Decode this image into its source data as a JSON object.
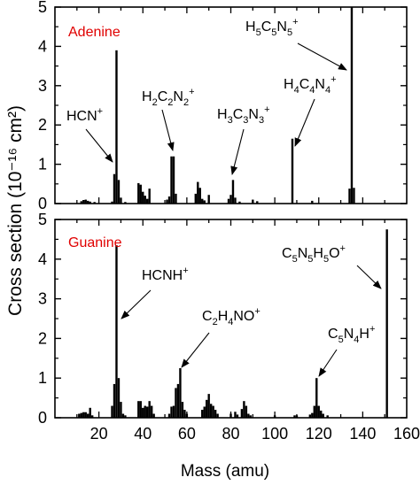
{
  "chart_data": [
    {
      "type": "bar",
      "sample_label": "Adenine",
      "xlabel": "Mass (amu)",
      "ylabel": "Cross section (10⁻¹⁶ cm²)",
      "xlim": [
        0,
        160
      ],
      "ylim": [
        0,
        5
      ],
      "x_ticks": [
        20,
        40,
        60,
        80,
        100,
        120,
        140,
        160
      ],
      "y_ticks": [
        0,
        1,
        2,
        3,
        4,
        5
      ],
      "annotations": [
        {
          "base": "HCN",
          "subs": [],
          "sup": "+",
          "target_mass": 27
        },
        {
          "base": "H",
          "subs": [
            "2",
            "C",
            "2",
            "N",
            "2"
          ],
          "sup": "+",
          "target_mass": 54
        },
        {
          "base": "H",
          "subs": [
            "3",
            "C",
            "3",
            "N",
            "3"
          ],
          "sup": "+",
          "target_mass": 81
        },
        {
          "base": "H",
          "subs": [
            "4",
            "C",
            "4",
            "N",
            "4"
          ],
          "sup": "+",
          "target_mass": 108
        },
        {
          "base": "H",
          "subs": [
            "5",
            "C",
            "5",
            "N",
            "5"
          ],
          "sup": "+",
          "target_mass": 135
        }
      ],
      "peaks": [
        [
          12,
          0.06
        ],
        [
          13,
          0.09
        ],
        [
          14,
          0.1
        ],
        [
          15,
          0.07
        ],
        [
          16,
          0.05
        ],
        [
          18,
          0.04
        ],
        [
          26,
          0.05
        ],
        [
          27,
          0.75
        ],
        [
          28,
          3.9
        ],
        [
          29,
          0.6
        ],
        [
          30,
          0.15
        ],
        [
          32,
          0.04
        ],
        [
          38,
          0.52
        ],
        [
          39,
          0.48
        ],
        [
          40,
          0.3
        ],
        [
          41,
          0.2
        ],
        [
          42,
          0.12
        ],
        [
          43,
          0.38
        ],
        [
          51,
          0.1
        ],
        [
          52,
          0.18
        ],
        [
          53,
          1.2
        ],
        [
          54,
          1.2
        ],
        [
          55,
          0.25
        ],
        [
          64,
          0.25
        ],
        [
          65,
          0.55
        ],
        [
          66,
          0.4
        ],
        [
          67,
          0.12
        ],
        [
          68,
          0.08
        ],
        [
          70,
          0.22
        ],
        [
          79,
          0.12
        ],
        [
          80,
          0.22
        ],
        [
          81,
          0.6
        ],
        [
          82,
          0.15
        ],
        [
          84,
          0.05
        ],
        [
          90,
          0.1
        ],
        [
          92,
          0.06
        ],
        [
          108,
          1.65
        ],
        [
          117,
          0.07
        ],
        [
          134,
          0.38
        ],
        [
          135,
          5.0
        ],
        [
          136,
          0.4
        ]
      ]
    },
    {
      "type": "bar",
      "sample_label": "Guanine",
      "xlabel": "Mass (amu)",
      "ylabel": "Cross section (10⁻¹⁶ cm²)",
      "xlim": [
        0,
        160
      ],
      "ylim": [
        0,
        5
      ],
      "x_ticks": [
        20,
        40,
        60,
        80,
        100,
        120,
        140,
        160
      ],
      "y_ticks": [
        0,
        1,
        2,
        3,
        4,
        5
      ],
      "annotations": [
        {
          "base": "HCNH",
          "subs": [],
          "sup": "+",
          "target_mass": 28
        },
        {
          "base": "C",
          "subs": [
            "2",
            "H",
            "4",
            "NO"
          ],
          "sup": "+",
          "target_mass": 57
        },
        {
          "base": "C",
          "subs": [
            "5",
            "N",
            "4",
            "H"
          ],
          "sup": "+",
          "target_mass": 119
        },
        {
          "base": "C",
          "subs": [
            "5",
            "N",
            "5",
            "H",
            "5",
            "O"
          ],
          "sup": "+",
          "target_mass": 151
        }
      ],
      "peaks": [
        [
          11,
          0.1
        ],
        [
          12,
          0.12
        ],
        [
          13,
          0.14
        ],
        [
          14,
          0.14
        ],
        [
          15,
          0.1
        ],
        [
          16,
          0.25
        ],
        [
          17,
          0.06
        ],
        [
          26,
          0.3
        ],
        [
          27,
          0.85
        ],
        [
          28,
          4.35
        ],
        [
          29,
          1.0
        ],
        [
          30,
          0.4
        ],
        [
          31,
          0.1
        ],
        [
          32,
          0.06
        ],
        [
          38,
          0.42
        ],
        [
          39,
          0.42
        ],
        [
          40,
          0.25
        ],
        [
          41,
          0.3
        ],
        [
          42,
          0.28
        ],
        [
          43,
          0.42
        ],
        [
          44,
          0.3
        ],
        [
          45,
          0.1
        ],
        [
          52,
          0.1
        ],
        [
          53,
          0.28
        ],
        [
          54,
          0.3
        ],
        [
          55,
          0.75
        ],
        [
          56,
          0.85
        ],
        [
          57,
          1.25
        ],
        [
          58,
          0.4
        ],
        [
          59,
          0.2
        ],
        [
          60,
          0.1
        ],
        [
          67,
          0.2
        ],
        [
          68,
          0.28
        ],
        [
          69,
          0.45
        ],
        [
          70,
          0.6
        ],
        [
          71,
          0.35
        ],
        [
          72,
          0.3
        ],
        [
          73,
          0.2
        ],
        [
          74,
          0.1
        ],
        [
          80,
          0.1
        ],
        [
          82,
          0.15
        ],
        [
          83,
          0.08
        ],
        [
          85,
          0.22
        ],
        [
          86,
          0.42
        ],
        [
          87,
          0.3
        ],
        [
          88,
          0.1
        ],
        [
          89,
          0.06
        ],
        [
          100,
          0.06
        ],
        [
          109,
          0.06
        ],
        [
          110,
          0.06
        ],
        [
          116,
          0.08
        ],
        [
          117,
          0.12
        ],
        [
          118,
          0.3
        ],
        [
          119,
          1.0
        ],
        [
          120,
          0.3
        ],
        [
          121,
          0.18
        ],
        [
          122,
          0.1
        ],
        [
          124,
          0.06
        ],
        [
          151,
          4.75
        ]
      ]
    }
  ]
}
